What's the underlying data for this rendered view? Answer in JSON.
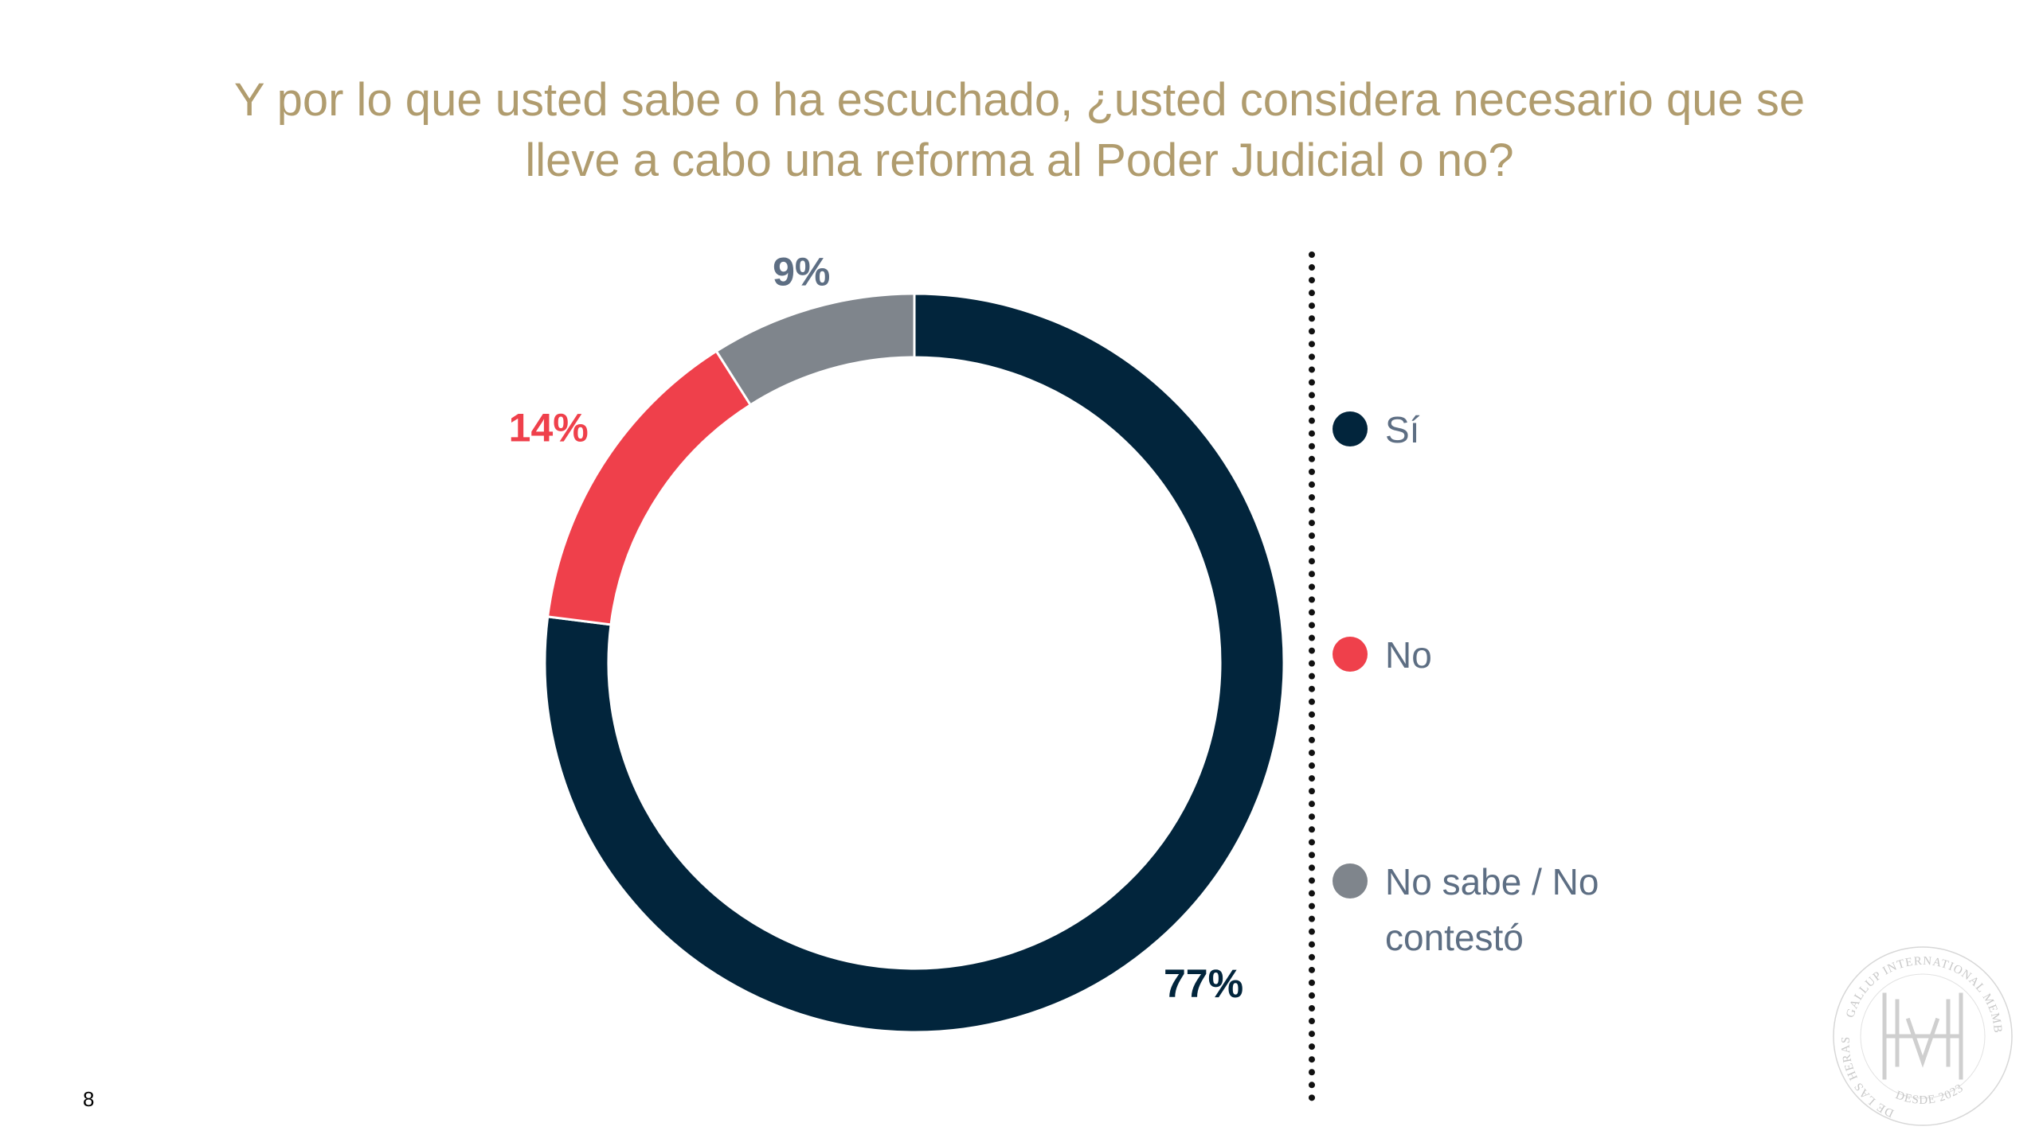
{
  "title": {
    "line1": "Y por lo que usted sabe o ha escuchado, ¿usted considera necesario que se",
    "line2": "lleve a cabo una reforma al Poder Judicial o no?"
  },
  "chart_data": {
    "type": "pie",
    "donut": true,
    "title": "Y por lo que usted sabe o ha escuchado, ¿usted considera necesario que se lleve a cabo una reforma al Poder Judicial o no?",
    "categories": [
      "Sí",
      "No",
      "No sabe / No contestó"
    ],
    "values": [
      77,
      14,
      9
    ],
    "labels": [
      "77%",
      "14%",
      "9%"
    ],
    "colors": [
      "#02253c",
      "#ef404b",
      "#7f858c"
    ],
    "label_colors": [
      "#02253c",
      "#ef404b",
      "#5d6e83"
    ],
    "legend_position": "right"
  },
  "legend": {
    "items": [
      {
        "label": "Sí",
        "color": "#02253c"
      },
      {
        "label": "No",
        "color": "#ef404b"
      },
      {
        "label": "No sabe / No contestó",
        "color": "#7f858c"
      }
    ]
  },
  "page_number": "8",
  "logo": {
    "ring_text_top": "GALLUP INTERNATIONAL MEMBER",
    "ring_text_left": "DE LAS HERAS",
    "ring_text_bottom": "DESDE 2023"
  }
}
